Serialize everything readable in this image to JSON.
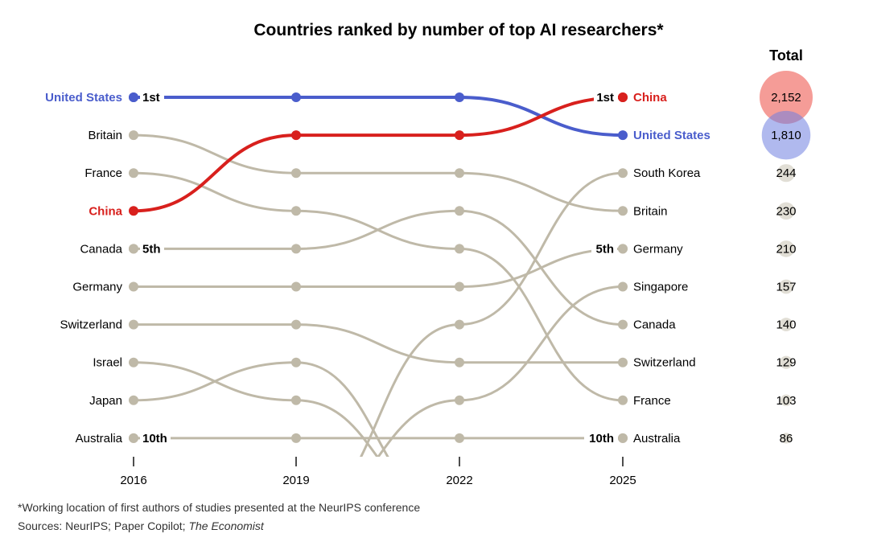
{
  "chart_data": {
    "type": "bump",
    "title": "Countries ranked by number of top AI researchers*",
    "years": [
      "2016",
      "2019",
      "2022",
      "2025"
    ],
    "total_header": "Total",
    "rank_markers": {
      "first": "1st",
      "fifth": "5th",
      "tenth": "10th"
    },
    "highlight_colors": {
      "United States": "#4a5dcc",
      "China": "#d8201d",
      "other": "#bfb9a8"
    },
    "series": [
      {
        "name": "United States",
        "ranks": [
          1,
          1,
          1,
          2
        ],
        "total": "1,810",
        "highlight": true
      },
      {
        "name": "China",
        "ranks": [
          4,
          2,
          2,
          1
        ],
        "total": "2,152",
        "highlight": true
      },
      {
        "name": "Britain",
        "ranks": [
          2,
          3,
          3,
          4
        ],
        "total": "230"
      },
      {
        "name": "France",
        "ranks": [
          3,
          4,
          5,
          9
        ],
        "total": "103"
      },
      {
        "name": "Canada",
        "ranks": [
          5,
          5,
          4,
          7
        ],
        "total": "140"
      },
      {
        "name": "Germany",
        "ranks": [
          6,
          6,
          6,
          5
        ],
        "total": "210"
      },
      {
        "name": "Switzerland",
        "ranks": [
          7,
          7,
          8,
          8
        ],
        "total": "129"
      },
      {
        "name": "Israel",
        "ranks": [
          8,
          9,
          null,
          null
        ],
        "total": null
      },
      {
        "name": "Japan",
        "ranks": [
          9,
          8,
          null,
          null
        ],
        "total": null
      },
      {
        "name": "Australia",
        "ranks": [
          10,
          10,
          10,
          10
        ],
        "total": "86"
      },
      {
        "name": "South Korea",
        "ranks": [
          null,
          null,
          7,
          3
        ],
        "total": "244"
      },
      {
        "name": "Singapore",
        "ranks": [
          null,
          null,
          9,
          6
        ],
        "total": "157"
      }
    ],
    "left_labels": [
      "United States",
      "Britain",
      "France",
      "China",
      "Canada",
      "Germany",
      "Switzerland",
      "Israel",
      "Japan",
      "Australia"
    ],
    "right_labels": [
      "China",
      "United States",
      "South Korea",
      "Britain",
      "Germany",
      "Singapore",
      "Canada",
      "Switzerland",
      "France",
      "Australia"
    ]
  },
  "footnote": "*Working location of first authors of studies presented at the NeurIPS conference",
  "source_prefix": "Sources: NeurIPS; Paper Copilot; ",
  "source_italic": "The Economist"
}
